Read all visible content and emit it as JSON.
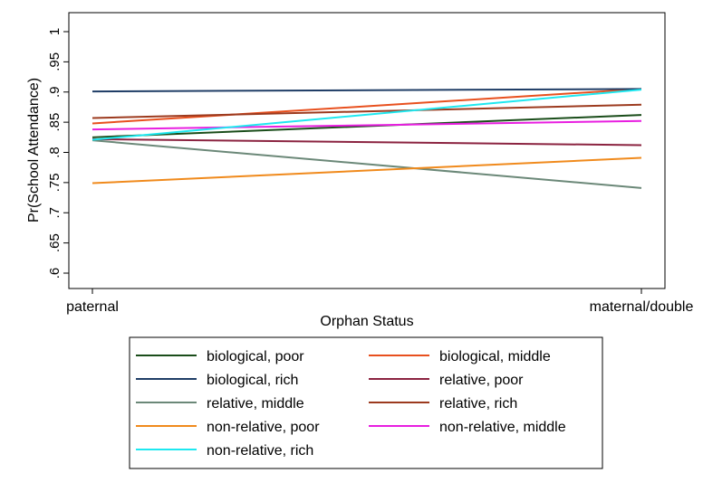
{
  "chart_data": {
    "type": "line",
    "title": "",
    "xlabel": "Orphan Status",
    "ylabel": "Pr(School Attendance)",
    "categories": [
      "paternal",
      "maternal/double"
    ],
    "ylim": [
      0.58,
      1.0
    ],
    "yticks": [
      {
        "value": 0.6,
        "label": ".6"
      },
      {
        "value": 0.65,
        "label": ".65"
      },
      {
        "value": 0.7,
        "label": ".7"
      },
      {
        "value": 0.75,
        "label": ".75"
      },
      {
        "value": 0.8,
        "label": ".8"
      },
      {
        "value": 0.85,
        "label": ".85"
      },
      {
        "value": 0.9,
        "label": ".9"
      },
      {
        "value": 0.95,
        "label": ".95"
      },
      {
        "value": 1.0,
        "label": "1"
      }
    ],
    "grid": false,
    "legend_position": "bottom",
    "series": [
      {
        "name": "biological, poor",
        "color": "#1a4d1a",
        "values": [
          0.825,
          0.862
        ]
      },
      {
        "name": "biological, middle",
        "color": "#e8501e",
        "values": [
          0.848,
          0.905
        ]
      },
      {
        "name": "biological, rich",
        "color": "#1f3d66",
        "values": [
          0.901,
          0.905
        ]
      },
      {
        "name": "relative, poor",
        "color": "#8b2340",
        "values": [
          0.822,
          0.812
        ]
      },
      {
        "name": "relative, middle",
        "color": "#6b8878",
        "values": [
          0.82,
          0.741
        ]
      },
      {
        "name": "relative, rich",
        "color": "#9c3a1e",
        "values": [
          0.857,
          0.879
        ]
      },
      {
        "name": "non-relative, poor",
        "color": "#f08a1c",
        "values": [
          0.749,
          0.791
        ]
      },
      {
        "name": "non-relative, middle",
        "color": "#e81ee0",
        "values": [
          0.838,
          0.852
        ]
      },
      {
        "name": "non-relative, rich",
        "color": "#1ee8f0",
        "values": [
          0.821,
          0.904
        ]
      }
    ]
  }
}
